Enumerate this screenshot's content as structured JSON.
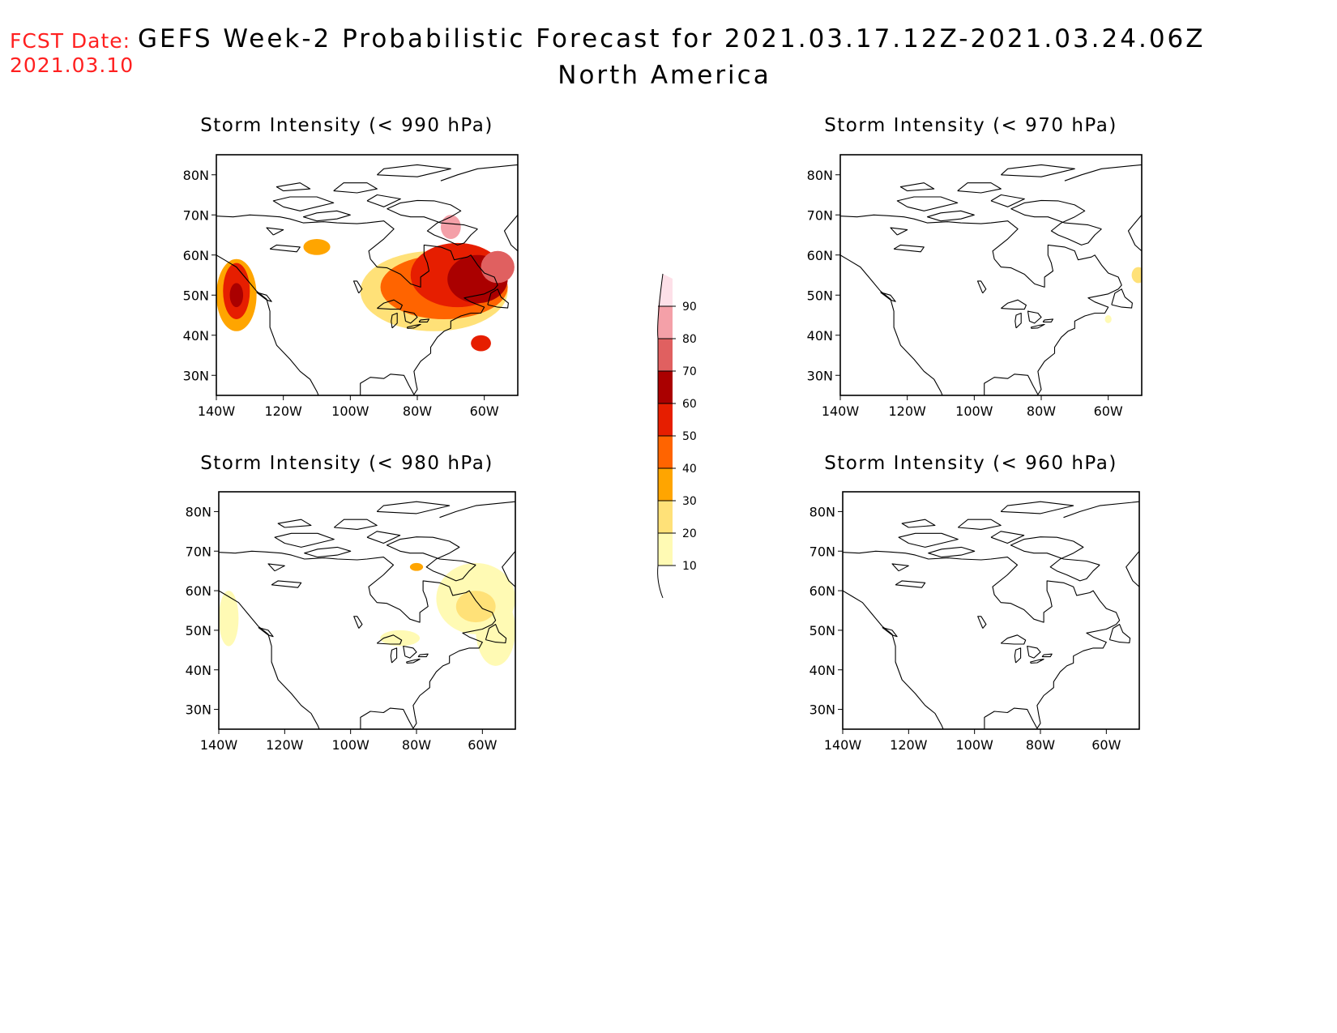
{
  "fcst_label": "FCST Date:",
  "fcst_date": "2021.03.10",
  "title": "GEFS Week-2 Probabilistic Forecast for 2021.03.17.12Z-2021.03.24.06Z",
  "subtitle": "North America",
  "lat_ticks": [
    "80N",
    "70N",
    "60N",
    "50N",
    "40N",
    "30N"
  ],
  "lon_ticks": [
    "140W",
    "120W",
    "100W",
    "80W",
    "60W"
  ],
  "lat_values": [
    80,
    70,
    60,
    50,
    40,
    30
  ],
  "lon_values": [
    -140,
    -120,
    -100,
    -80,
    -60
  ],
  "map_extent": {
    "lon_min": -140,
    "lon_max": -50,
    "lat_min": 25,
    "lat_max": 85
  },
  "colorbar": {
    "levels": [
      10,
      20,
      30,
      40,
      50,
      60,
      70,
      80,
      90
    ],
    "labels": [
      "10",
      "20",
      "30",
      "40",
      "50",
      "60",
      "70",
      "80",
      "90"
    ],
    "colors": [
      "#fffab4",
      "#ffe178",
      "#ffa500",
      "#ff6400",
      "#e61e00",
      "#aa0000",
      "#e06060",
      "#f4a0a8",
      "#fde0e8"
    ]
  },
  "panels": [
    {
      "id": "p990",
      "title": "Storm Intensity (< 990 hPa)",
      "blobs": [
        {
          "lon": -134,
          "lat": 50,
          "rx": 6,
          "ry": 9,
          "level": 2
        },
        {
          "lon": -134,
          "lat": 51,
          "rx": 4,
          "ry": 7,
          "level": 4
        },
        {
          "lon": -134,
          "lat": 50,
          "rx": 2,
          "ry": 3,
          "level": 5
        },
        {
          "lon": -75,
          "lat": 51,
          "rx": 22,
          "ry": 10,
          "level": 1
        },
        {
          "lon": -72,
          "lat": 52,
          "rx": 19,
          "ry": 8,
          "level": 3
        },
        {
          "lon": -68,
          "lat": 55,
          "rx": 14,
          "ry": 8,
          "level": 4
        },
        {
          "lon": -62,
          "lat": 54,
          "rx": 9,
          "ry": 6,
          "level": 5
        },
        {
          "lon": -56,
          "lat": 57,
          "rx": 5,
          "ry": 4,
          "level": 6
        },
        {
          "lon": -70,
          "lat": 67,
          "rx": 3,
          "ry": 3,
          "level": 7
        },
        {
          "lon": -110,
          "lat": 62,
          "rx": 4,
          "ry": 2,
          "level": 2
        },
        {
          "lon": -61,
          "lat": 38,
          "rx": 3,
          "ry": 2,
          "level": 4
        }
      ]
    },
    {
      "id": "p970",
      "title": "Storm Intensity (< 970 hPa)",
      "blobs": [
        {
          "lon": -51,
          "lat": 55,
          "rx": 2,
          "ry": 2,
          "level": 1
        },
        {
          "lon": -60,
          "lat": 44,
          "rx": 1,
          "ry": 1,
          "level": 0
        }
      ]
    },
    {
      "id": "p980",
      "title": "Storm Intensity (< 980 hPa)",
      "blobs": [
        {
          "lon": -137,
          "lat": 53,
          "rx": 3,
          "ry": 7,
          "level": 0
        },
        {
          "lon": -62,
          "lat": 58,
          "rx": 12,
          "ry": 9,
          "level": 0
        },
        {
          "lon": -56,
          "lat": 50,
          "rx": 6,
          "ry": 9,
          "level": 0
        },
        {
          "lon": -62,
          "lat": 56,
          "rx": 6,
          "ry": 4,
          "level": 1
        },
        {
          "lon": -85,
          "lat": 48,
          "rx": 6,
          "ry": 2,
          "level": 0
        },
        {
          "lon": -80,
          "lat": 66,
          "rx": 2,
          "ry": 1,
          "level": 2
        }
      ]
    },
    {
      "id": "p960",
      "title": "Storm Intensity (< 960 hPa)",
      "blobs": []
    }
  ]
}
